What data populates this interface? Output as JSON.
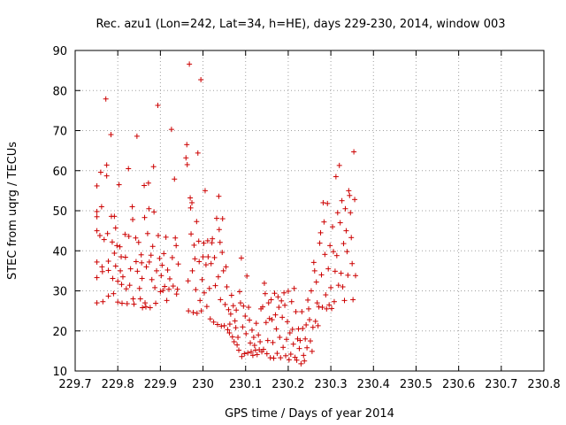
{
  "chart_data": {
    "type": "scatter",
    "title": "Rec. azu1 (Lon=242, Lat=34, h=HE), days 229-230, 2014, window 003",
    "xlabel": "GPS time / Days of year 2014",
    "ylabel": "STEC from uqrg / TECUs",
    "xlim": [
      229.7,
      230.8
    ],
    "ylim": [
      10,
      90
    ],
    "grid": true,
    "marker": "plus",
    "color": "#cc0000",
    "x_ticks": [
      "229.7",
      "229.8",
      "229.9",
      "230",
      "230.1",
      "230.2",
      "230.3",
      "230.4",
      "230.5",
      "230.6",
      "230.7",
      "230.8"
    ],
    "y_ticks": [
      "10",
      "20",
      "30",
      "40",
      "50",
      "60",
      "70",
      "80",
      "90"
    ],
    "points": [
      [
        229.751,
        56.2
      ],
      [
        229.751,
        49.8
      ],
      [
        229.751,
        48.5
      ],
      [
        229.751,
        45.0
      ],
      [
        229.751,
        37.2
      ],
      [
        229.751,
        33.3
      ],
      [
        229.751,
        27.0
      ],
      [
        229.758,
        43.8
      ],
      [
        229.76,
        59.6
      ],
      [
        229.762,
        51.0
      ],
      [
        229.763,
        36.0
      ],
      [
        229.764,
        34.8
      ],
      [
        229.765,
        27.3
      ],
      [
        229.768,
        42.8
      ],
      [
        229.772,
        77.9
      ],
      [
        229.774,
        61.4
      ],
      [
        229.774,
        58.7
      ],
      [
        229.776,
        44.3
      ],
      [
        229.778,
        37.4
      ],
      [
        229.778,
        35.1
      ],
      [
        229.778,
        28.7
      ],
      [
        229.784,
        69.0
      ],
      [
        229.785,
        48.6
      ],
      [
        229.787,
        42.2
      ],
      [
        229.788,
        33.1
      ],
      [
        229.79,
        29.3
      ],
      [
        229.792,
        39.4
      ],
      [
        229.792,
        48.6
      ],
      [
        229.795,
        45.7
      ],
      [
        229.795,
        36.2
      ],
      [
        229.798,
        41.3
      ],
      [
        229.8,
        32.4
      ],
      [
        229.8,
        27.2
      ],
      [
        229.803,
        56.5
      ],
      [
        229.805,
        41.0
      ],
      [
        229.806,
        35.0
      ],
      [
        229.808,
        38.5
      ],
      [
        229.809,
        31.6
      ],
      [
        229.81,
        26.9
      ],
      [
        229.812,
        33.5
      ],
      [
        229.817,
        44.1
      ],
      [
        229.818,
        38.4
      ],
      [
        229.82,
        30.5
      ],
      [
        229.822,
        26.8
      ],
      [
        229.825,
        60.5
      ],
      [
        229.826,
        43.6
      ],
      [
        229.828,
        31.4
      ],
      [
        229.83,
        35.5
      ],
      [
        229.834,
        51.0
      ],
      [
        229.835,
        47.8
      ],
      [
        229.836,
        28.0
      ],
      [
        229.838,
        26.7
      ],
      [
        229.842,
        43.2
      ],
      [
        229.843,
        37.3
      ],
      [
        229.845,
        68.6
      ],
      [
        229.846,
        34.9
      ],
      [
        229.849,
        42.1
      ],
      [
        229.851,
        30.6
      ],
      [
        229.853,
        28.0
      ],
      [
        229.855,
        39.0
      ],
      [
        229.856,
        37.0
      ],
      [
        229.857,
        33.1
      ],
      [
        229.858,
        25.8
      ],
      [
        229.862,
        56.3
      ],
      [
        229.863,
        48.3
      ],
      [
        229.864,
        27.0
      ],
      [
        229.866,
        26.0
      ],
      [
        229.867,
        36.0
      ],
      [
        229.87,
        44.3
      ],
      [
        229.872,
        56.9
      ],
      [
        229.873,
        50.5
      ],
      [
        229.874,
        37.2
      ],
      [
        229.876,
        25.8
      ],
      [
        229.878,
        38.9
      ],
      [
        229.88,
        32.8
      ],
      [
        229.882,
        41.1
      ],
      [
        229.884,
        61.0
      ],
      [
        229.885,
        49.7
      ],
      [
        229.887,
        30.8
      ],
      [
        229.889,
        26.9
      ],
      [
        229.891,
        35.0
      ],
      [
        229.894,
        76.3
      ],
      [
        229.895,
        43.8
      ],
      [
        229.898,
        38.1
      ],
      [
        229.9,
        29.8
      ],
      [
        229.902,
        33.8
      ],
      [
        229.904,
        36.4
      ],
      [
        229.906,
        30.1
      ],
      [
        229.908,
        39.3
      ],
      [
        229.91,
        31.1
      ],
      [
        229.913,
        43.4
      ],
      [
        229.915,
        27.6
      ],
      [
        229.917,
        35.2
      ],
      [
        229.92,
        30.4
      ],
      [
        229.922,
        33.0
      ],
      [
        229.926,
        70.3
      ],
      [
        229.928,
        38.3
      ],
      [
        229.93,
        31.2
      ],
      [
        229.933,
        57.9
      ],
      [
        229.935,
        43.2
      ],
      [
        229.937,
        41.3
      ],
      [
        229.938,
        29.2
      ],
      [
        229.94,
        30.4
      ],
      [
        229.942,
        36.7
      ],
      [
        229.96,
        63.2
      ],
      [
        229.962,
        66.5
      ],
      [
        229.963,
        61.5
      ],
      [
        229.965,
        32.5
      ],
      [
        229.966,
        25.0
      ],
      [
        229.968,
        86.6
      ],
      [
        229.97,
        53.2
      ],
      [
        229.971,
        50.7
      ],
      [
        229.972,
        44.2
      ],
      [
        229.974,
        52.0
      ],
      [
        229.975,
        35.0
      ],
      [
        229.977,
        24.6
      ],
      [
        229.979,
        41.4
      ],
      [
        229.981,
        38.0
      ],
      [
        229.983,
        30.3
      ],
      [
        229.985,
        47.3
      ],
      [
        229.986,
        24.4
      ],
      [
        229.988,
        64.4
      ],
      [
        229.99,
        42.4
      ],
      [
        229.991,
        37.3
      ],
      [
        229.993,
        27.6
      ],
      [
        229.995,
        82.7
      ],
      [
        229.996,
        25.0
      ],
      [
        229.998,
        32.8
      ],
      [
        230.0,
        38.5
      ],
      [
        230.002,
        41.9
      ],
      [
        230.003,
        29.5
      ],
      [
        230.005,
        55.0
      ],
      [
        230.007,
        36.5
      ],
      [
        230.009,
        26.1
      ],
      [
        230.011,
        42.5
      ],
      [
        230.012,
        38.5
      ],
      [
        230.015,
        30.6
      ],
      [
        230.017,
        23.0
      ],
      [
        230.019,
        36.8
      ],
      [
        230.021,
        42.0
      ],
      [
        230.022,
        43.0
      ],
      [
        230.025,
        22.2
      ],
      [
        230.027,
        38.3
      ],
      [
        230.029,
        31.3
      ],
      [
        230.032,
        48.1
      ],
      [
        230.034,
        21.6
      ],
      [
        230.036,
        33.5
      ],
      [
        230.037,
        53.6
      ],
      [
        230.038,
        45.3
      ],
      [
        230.04,
        42.1
      ],
      [
        230.041,
        27.8
      ],
      [
        230.043,
        21.2
      ],
      [
        230.045,
        39.6
      ],
      [
        230.046,
        48.0
      ],
      [
        230.048,
        35.0
      ],
      [
        230.05,
        21.3
      ],
      [
        230.052,
        26.6
      ],
      [
        230.054,
        36.0
      ],
      [
        230.056,
        31.0
      ],
      [
        230.058,
        20.3
      ],
      [
        230.06,
        25.3
      ],
      [
        230.062,
        19.5
      ],
      [
        230.063,
        21.7
      ],
      [
        230.065,
        24.2
      ],
      [
        230.067,
        28.9
      ],
      [
        230.069,
        18.5
      ],
      [
        230.071,
        26.3
      ],
      [
        230.073,
        17.3
      ],
      [
        230.075,
        22.5
      ],
      [
        230.077,
        20.8
      ],
      [
        230.078,
        25.2
      ],
      [
        230.08,
        16.5
      ],
      [
        230.082,
        18.4
      ],
      [
        230.084,
        15.2
      ],
      [
        230.086,
        29.8
      ],
      [
        230.088,
        27.0
      ],
      [
        230.09,
        38.2
      ],
      [
        230.091,
        13.6
      ],
      [
        230.093,
        21.0
      ],
      [
        230.095,
        26.2
      ],
      [
        230.097,
        14.3
      ],
      [
        230.099,
        23.7
      ],
      [
        230.101,
        19.3
      ],
      [
        230.103,
        33.7
      ],
      [
        230.105,
        14.5
      ],
      [
        230.107,
        25.9
      ],
      [
        230.109,
        22.7
      ],
      [
        230.111,
        17.0
      ],
      [
        230.113,
        14.8
      ],
      [
        230.115,
        20.2
      ],
      [
        230.117,
        13.9
      ],
      [
        230.119,
        18.4
      ],
      [
        230.121,
        16.4
      ],
      [
        230.123,
        15.2
      ],
      [
        230.125,
        21.9
      ],
      [
        230.127,
        14.1
      ],
      [
        230.13,
        19.0
      ],
      [
        230.132,
        15.3
      ],
      [
        230.134,
        17.3
      ],
      [
        230.136,
        25.5
      ],
      [
        230.138,
        14.8
      ],
      [
        230.14,
        26.0
      ],
      [
        230.142,
        15.4
      ],
      [
        230.144,
        31.9
      ],
      [
        230.146,
        29.3
      ],
      [
        230.148,
        22.1
      ],
      [
        230.15,
        14.3
      ],
      [
        230.152,
        17.6
      ],
      [
        230.154,
        27.0
      ],
      [
        230.156,
        23.1
      ],
      [
        230.158,
        13.3
      ],
      [
        230.16,
        27.8
      ],
      [
        230.162,
        22.8
      ],
      [
        230.164,
        17.1
      ],
      [
        230.166,
        13.2
      ],
      [
        230.168,
        29.4
      ],
      [
        230.17,
        24.0
      ],
      [
        230.172,
        20.5
      ],
      [
        230.174,
        14.4
      ],
      [
        230.176,
        28.5
      ],
      [
        230.178,
        25.9
      ],
      [
        230.18,
        18.4
      ],
      [
        230.182,
        13.3
      ],
      [
        230.184,
        27.5
      ],
      [
        230.186,
        23.4
      ],
      [
        230.188,
        15.9
      ],
      [
        230.19,
        29.5
      ],
      [
        230.192,
        26.4
      ],
      [
        230.194,
        13.8
      ],
      [
        230.196,
        17.9
      ],
      [
        230.198,
        22.3
      ],
      [
        230.2,
        29.9
      ],
      [
        230.202,
        12.8
      ],
      [
        230.204,
        19.5
      ],
      [
        230.206,
        14.2
      ],
      [
        230.208,
        27.3
      ],
      [
        230.21,
        20.4
      ],
      [
        230.212,
        16.7
      ],
      [
        230.214,
        30.6
      ],
      [
        230.216,
        13.4
      ],
      [
        230.218,
        24.8
      ],
      [
        230.22,
        12.7
      ],
      [
        230.222,
        18.0
      ],
      [
        230.224,
        20.5
      ],
      [
        230.226,
        15.6
      ],
      [
        230.228,
        17.6
      ],
      [
        230.23,
        11.8
      ],
      [
        230.232,
        24.8
      ],
      [
        230.234,
        20.6
      ],
      [
        230.236,
        13.9
      ],
      [
        230.238,
        12.5
      ],
      [
        230.24,
        18.0
      ],
      [
        230.242,
        21.5
      ],
      [
        230.244,
        15.8
      ],
      [
        230.246,
        27.7
      ],
      [
        230.248,
        25.5
      ],
      [
        230.25,
        22.8
      ],
      [
        230.252,
        17.5
      ],
      [
        230.254,
        30.0
      ],
      [
        230.256,
        14.9
      ],
      [
        230.258,
        20.9
      ],
      [
        230.26,
        37.1
      ],
      [
        230.262,
        35.0
      ],
      [
        230.264,
        22.4
      ],
      [
        230.266,
        32.2
      ],
      [
        230.268,
        27.0
      ],
      [
        230.27,
        21.3
      ],
      [
        230.272,
        26.0
      ],
      [
        230.274,
        41.9
      ],
      [
        230.276,
        44.5
      ],
      [
        230.278,
        34.0
      ],
      [
        230.28,
        25.9
      ],
      [
        230.282,
        52.0
      ],
      [
        230.284,
        47.2
      ],
      [
        230.286,
        39.1
      ],
      [
        230.288,
        29.0
      ],
      [
        230.29,
        25.5
      ],
      [
        230.292,
        51.8
      ],
      [
        230.294,
        35.5
      ],
      [
        230.296,
        26.5
      ],
      [
        230.298,
        41.3
      ],
      [
        230.3,
        30.8
      ],
      [
        230.302,
        25.6
      ],
      [
        230.304,
        46.0
      ],
      [
        230.306,
        39.8
      ],
      [
        230.308,
        27.3
      ],
      [
        230.31,
        34.9
      ],
      [
        230.312,
        58.5
      ],
      [
        230.314,
        38.8
      ],
      [
        230.316,
        49.5
      ],
      [
        230.318,
        31.4
      ],
      [
        230.32,
        61.3
      ],
      [
        230.322,
        47.0
      ],
      [
        230.324,
        34.4
      ],
      [
        230.326,
        52.5
      ],
      [
        230.328,
        31.0
      ],
      [
        230.33,
        41.8
      ],
      [
        230.332,
        27.6
      ],
      [
        230.334,
        50.5
      ],
      [
        230.336,
        45.0
      ],
      [
        230.338,
        39.8
      ],
      [
        230.34,
        33.9
      ],
      [
        230.342,
        55.0
      ],
      [
        230.344,
        53.8
      ],
      [
        230.346,
        49.5
      ],
      [
        230.348,
        43.3
      ],
      [
        230.35,
        36.8
      ],
      [
        230.352,
        27.8
      ],
      [
        230.354,
        64.7
      ],
      [
        230.356,
        52.8
      ],
      [
        230.358,
        33.8
      ]
    ]
  }
}
